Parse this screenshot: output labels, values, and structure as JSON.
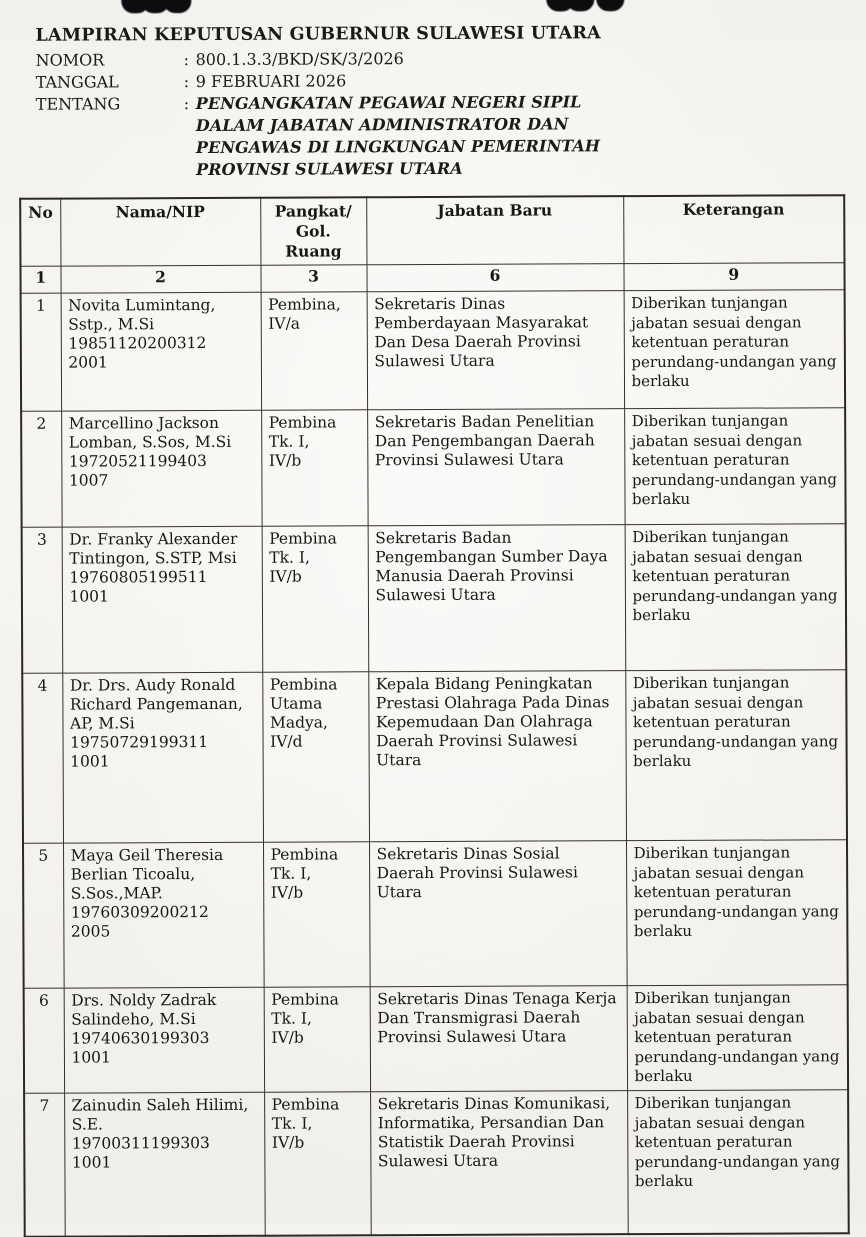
{
  "document": {
    "title": "LAMPIRAN KEPUTUSAN GUBERNUR SULAWESI UTARA",
    "separator": ":",
    "meta": [
      {
        "label": "NOMOR",
        "value": "800.1.3.3/BKD/SK/3/2026"
      },
      {
        "label": "TANGGAL",
        "value": "9 FEBRUARI 2026"
      },
      {
        "label": "TENTANG",
        "value": "PENGANGKATAN PEGAWAI NEGERI SIPIL DALAM JABATAN ADMINISTRATOR DAN PENGAWAS DI LINGKUNGAN PEMERINTAH PROVINSI SULAWESI UTARA"
      }
    ]
  },
  "table": {
    "headers": {
      "no": "No",
      "nama": "Nama/NIP",
      "pangkat": "Pangkat/\nGol.\nRuang",
      "jabatan": "Jabatan Baru",
      "keterangan": "Keterangan"
    },
    "column_numbers": {
      "no": "1",
      "nama": "2",
      "pangkat": "3",
      "jabatan": "6",
      "keterangan": "9"
    },
    "rows": [
      {
        "no": "1",
        "nama": "Novita Lumintang, Sstp., M.Si",
        "nip": "198511202003122001",
        "pangkat": "Pembina,\nIV/a",
        "jabatan": "Sekretaris Dinas Pemberdayaan Masyarakat Dan Desa Daerah Provinsi Sulawesi Utara",
        "keterangan": "Diberikan tunjangan jabatan sesuai dengan ketentuan peraturan perundang-undangan yang berlaku"
      },
      {
        "no": "2",
        "nama": "Marcellino Jackson Lomban, S.Sos, M.Si",
        "nip": "197205211994031007",
        "pangkat": "Pembina\nTk. I,\nIV/b",
        "jabatan": "Sekretaris Badan Penelitian Dan Pengembangan Daerah Provinsi Sulawesi Utara",
        "keterangan": "Diberikan tunjangan jabatan sesuai dengan ketentuan peraturan perundang-undangan yang berlaku"
      },
      {
        "no": "3",
        "nama": "Dr. Franky Alexander Tintingon, S.STP, Msi",
        "nip": "197608051995111001",
        "pangkat": "Pembina\nTk. I,\nIV/b",
        "jabatan": "Sekretaris Badan Pengembangan Sumber Daya Manusia Daerah Provinsi Sulawesi Utara",
        "keterangan": "Diberikan tunjangan jabatan sesuai dengan ketentuan peraturan perundang-undangan yang berlaku"
      },
      {
        "no": "4",
        "nama": "Dr. Drs. Audy Ronald Richard Pangemanan, AP, M.Si",
        "nip": "197507291993111001",
        "pangkat": "Pembina\nUtama\nMadya,\nIV/d",
        "jabatan": "Kepala Bidang Peningkatan Prestasi Olahraga Pada Dinas Kepemudaan Dan Olahraga Daerah Provinsi Sulawesi Utara",
        "keterangan": "Diberikan tunjangan jabatan sesuai dengan ketentuan peraturan perundang-undangan yang berlaku"
      },
      {
        "no": "5",
        "nama": "Maya Geil Theresia Berlian Ticoalu, S.Sos.,MAP.",
        "nip": "197603092002122005",
        "pangkat": "Pembina\nTk. I,\nIV/b",
        "jabatan": "Sekretaris Dinas Sosial Daerah Provinsi Sulawesi Utara",
        "keterangan": "Diberikan tunjangan jabatan sesuai dengan ketentuan peraturan perundang-undangan yang berlaku"
      },
      {
        "no": "6",
        "nama": "Drs. Noldy Zadrak Salindeho, M.Si",
        "nip": "197406301993031001",
        "pangkat": "Pembina\nTk. I,\nIV/b",
        "jabatan": "Sekretaris Dinas Tenaga Kerja Dan Transmigrasi Daerah Provinsi Sulawesi Utara",
        "keterangan": "Diberikan tunjangan jabatan sesuai dengan ketentuan peraturan perundang-undangan yang berlaku"
      },
      {
        "no": "7",
        "nama": "Zainudin Saleh Hilimi, S.E.",
        "nip": "197003111993031001",
        "pangkat": "Pembina\nTk. I,\nIV/b",
        "jabatan": "Sekretaris Dinas Komunikasi, Informatika, Persandian Dan Statistik Daerah Provinsi Sulawesi Utara",
        "keterangan": "Diberikan tunjangan jabatan sesuai dengan ketentuan peraturan perundang-undangan yang berlaku"
      }
    ]
  }
}
